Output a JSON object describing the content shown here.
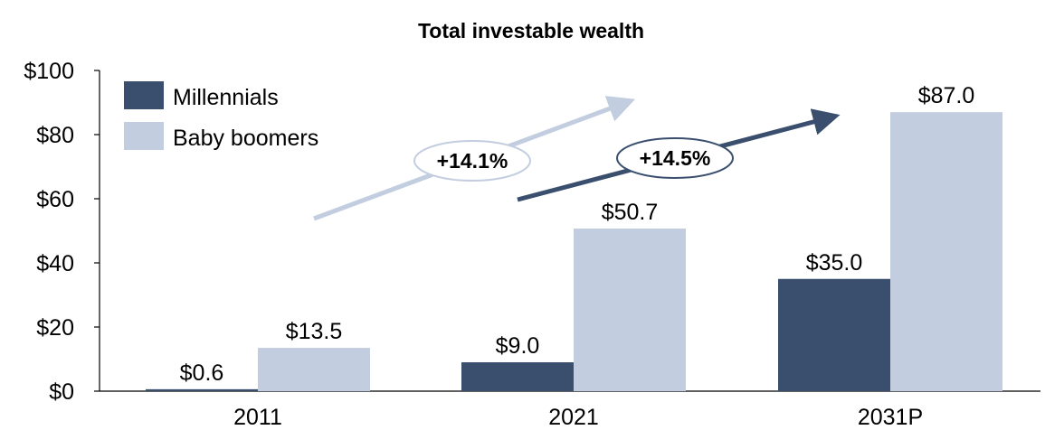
{
  "chart_data": {
    "type": "bar",
    "title": "Total investable wealth",
    "categories": [
      "2011",
      "2021",
      "2031P"
    ],
    "series": [
      {
        "name": "Millennials",
        "values": [
          0.6,
          9.0,
          35.0
        ],
        "labels": [
          "$0.6",
          "$9.0",
          "$35.0"
        ],
        "color": "#3a4e6e"
      },
      {
        "name": "Baby boomers",
        "values": [
          13.5,
          50.7,
          87.0
        ],
        "labels": [
          "$13.5",
          "$50.7",
          "$87.0"
        ],
        "color": "#c2cddf"
      }
    ],
    "yticks": [
      "$0",
      "$20",
      "$40",
      "$60",
      "$80",
      "$100"
    ],
    "ylim": [
      0,
      100
    ],
    "legend_position": "top-left",
    "annotations": [
      {
        "text": "+14.1%",
        "series": "Baby boomers",
        "color": "#c2cddf"
      },
      {
        "text": "+14.5%",
        "series": "Millennials",
        "color": "#3a4e6e"
      }
    ]
  }
}
